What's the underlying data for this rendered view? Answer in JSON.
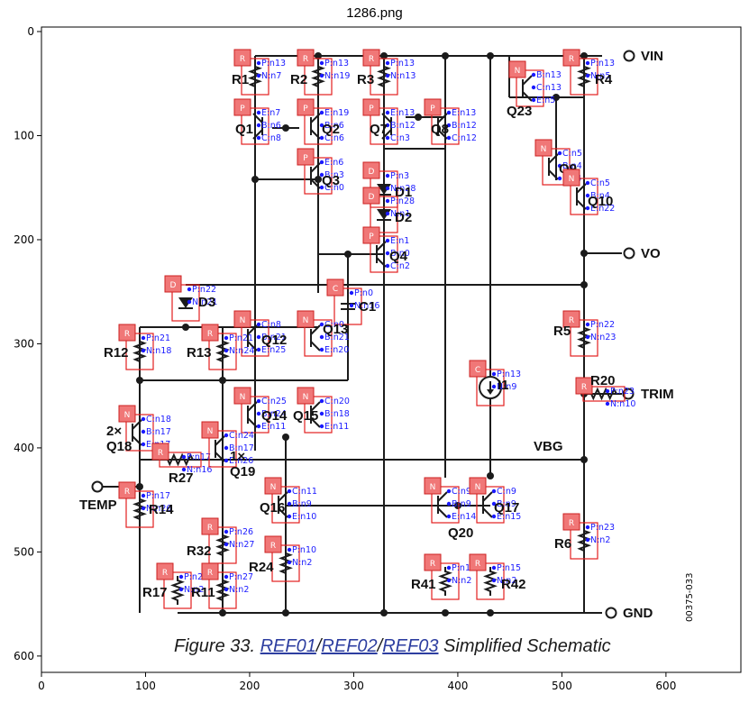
{
  "title": "1286.png",
  "axes": {
    "x_ticks": [
      "0",
      "100",
      "200",
      "300",
      "400",
      "500",
      "600"
    ],
    "y_ticks": [
      "0",
      "100",
      "200",
      "300",
      "400",
      "500",
      "600"
    ],
    "x_range": [
      0,
      672
    ],
    "y_range": [
      620,
      0
    ]
  },
  "caption": {
    "prefix": "Figure 33. ",
    "ref1": "REF01",
    "sep1": "/",
    "ref2": "REF02",
    "sep2": "/",
    "ref3": "REF03",
    "suffix": " Simplified Schematic"
  },
  "doc_code": "00375-033",
  "terminals": {
    "vin": "VIN",
    "vo": "VO",
    "trim": "TRIM",
    "gnd": "GND",
    "temp": "TEMP",
    "vbg": "VBG"
  },
  "components": [
    {
      "id": "R1",
      "label": "R1",
      "tag": "R",
      "pins": [
        "P:n13",
        "N:n7"
      ]
    },
    {
      "id": "R2",
      "label": "R2",
      "tag": "R",
      "pins": [
        "P:n13",
        "N:n19"
      ]
    },
    {
      "id": "R3",
      "label": "R3",
      "tag": "R",
      "pins": [
        "P:n13",
        "N:n13"
      ]
    },
    {
      "id": "R4",
      "label": "R4",
      "tag": "R",
      "pins": [
        "P:n13",
        "N:n5"
      ]
    },
    {
      "id": "Q1",
      "label": "Q1",
      "tag": "P",
      "pins": [
        "E:n7",
        "B:n6",
        "C:n8"
      ]
    },
    {
      "id": "Q2",
      "label": "Q2",
      "tag": "P",
      "pins": [
        "E:n19",
        "B:n6",
        "C:n6"
      ]
    },
    {
      "id": "Q3",
      "label": "Q3",
      "tag": "P",
      "pins": [
        "E:n6",
        "B:n3",
        "C:n0"
      ]
    },
    {
      "id": "Q7",
      "label": "Q7",
      "tag": "P",
      "pins": [
        "E:n13",
        "B:n12",
        "C:n3"
      ]
    },
    {
      "id": "Q8",
      "label": "Q8",
      "tag": "P",
      "pins": [
        "E:n13",
        "B:n12",
        "C:n12"
      ]
    },
    {
      "id": "Q23",
      "label": "Q23",
      "tag": "N",
      "pins": [
        "B:n13",
        "C:n13",
        "E:n5"
      ]
    },
    {
      "id": "Q9",
      "label": "Q9",
      "tag": "N",
      "pins": [
        "C:n5",
        "B:n4",
        "E:n4"
      ]
    },
    {
      "id": "Q10",
      "label": "Q10",
      "tag": "N",
      "pins": [
        "C:n5",
        "B:n4",
        "E:n22"
      ]
    },
    {
      "id": "D1",
      "label": "D1",
      "tag": "D",
      "pins": [
        "P:n3",
        "N:n28"
      ]
    },
    {
      "id": "D2",
      "label": "D2",
      "tag": "D",
      "pins": [
        "P:n28",
        "N:n1"
      ]
    },
    {
      "id": "Q4",
      "label": "Q4",
      "tag": "P",
      "pins": [
        "E:n1",
        "B:n0",
        "C:n2"
      ]
    },
    {
      "id": "D3",
      "label": "D3",
      "tag": "D",
      "pins": [
        "P:n22",
        "N:n21"
      ]
    },
    {
      "id": "C1",
      "label": "C1",
      "tag": "C",
      "pins": [
        "P:n0",
        "N:n16"
      ]
    },
    {
      "id": "Q12",
      "label": "Q12",
      "tag": "N",
      "pins": [
        "C:n8",
        "B:n21",
        "E:n25"
      ]
    },
    {
      "id": "Q13",
      "label": "Q13",
      "tag": "N",
      "pins": [
        "C:n0",
        "B:n21",
        "E:n20"
      ]
    },
    {
      "id": "R12",
      "label": "R12",
      "tag": "R",
      "pins": [
        "P:n21",
        "N:n18"
      ]
    },
    {
      "id": "R13",
      "label": "R13",
      "tag": "R",
      "pins": [
        "P:n21",
        "N:n24"
      ]
    },
    {
      "id": "R5",
      "label": "R5",
      "tag": "R",
      "pins": [
        "P:n22",
        "N:n23"
      ]
    },
    {
      "id": "I1",
      "label": "I1",
      "tag": "C",
      "pins": [
        "P:n13",
        "N:n9"
      ]
    },
    {
      "id": "R20",
      "label": "R20",
      "tag": "R",
      "pins": [
        "P:n23",
        "N:n10"
      ]
    },
    {
      "id": "Q14",
      "label": "Q14",
      "tag": "N",
      "pins": [
        "C:n25",
        "B:n24",
        "E:n11"
      ]
    },
    {
      "id": "Q15",
      "label": "Q15",
      "tag": "N",
      "pins": [
        "C:n20",
        "B:n18",
        "E:n11"
      ]
    },
    {
      "id": "Q18",
      "label": "2×\nQ18",
      "tag": "N",
      "pins": [
        "C:n18",
        "B:n17",
        "E:n17"
      ]
    },
    {
      "id": "R27",
      "label": "R27",
      "tag": "R",
      "pins": [
        "P:n17",
        "N:n16"
      ]
    },
    {
      "id": "Q19",
      "label": "1×\nQ19",
      "tag": "N",
      "pins": [
        "C:n24",
        "B:n17",
        "E:n26"
      ]
    },
    {
      "id": "R14",
      "label": "R14",
      "tag": "R",
      "pins": [
        "P:n17",
        "N:n26"
      ]
    },
    {
      "id": "Q16",
      "label": "Q16",
      "tag": "N",
      "pins": [
        "C:n11",
        "B:n9",
        "E:n10"
      ]
    },
    {
      "id": "R32",
      "label": "R32",
      "tag": "R",
      "pins": [
        "P:n26",
        "N:n27"
      ]
    },
    {
      "id": "R24",
      "label": "R24",
      "tag": "R",
      "pins": [
        "P:n10",
        "N:n2"
      ]
    },
    {
      "id": "R17",
      "label": "R17",
      "tag": "R",
      "pins": [
        "P:n27",
        "N:n2"
      ]
    },
    {
      "id": "R11",
      "label": "R11",
      "tag": "R",
      "pins": [
        "P:n27",
        "N:n2"
      ]
    },
    {
      "id": "Q20",
      "label": "Q20",
      "tag": "N",
      "pins": [
        "C:n9",
        "B:n9",
        "E:n14"
      ]
    },
    {
      "id": "Q17",
      "label": "Q17",
      "tag": "N",
      "pins": [
        "C:n9",
        "B:n9",
        "E:n15"
      ]
    },
    {
      "id": "R41",
      "label": "R41",
      "tag": "R",
      "pins": [
        "P:n14",
        "N:n2"
      ]
    },
    {
      "id": "R42",
      "label": "R42",
      "tag": "R",
      "pins": [
        "P:n15",
        "N:n2"
      ]
    },
    {
      "id": "R6",
      "label": "R6",
      "tag": "R",
      "pins": [
        "P:n23",
        "N:n2"
      ]
    }
  ]
}
